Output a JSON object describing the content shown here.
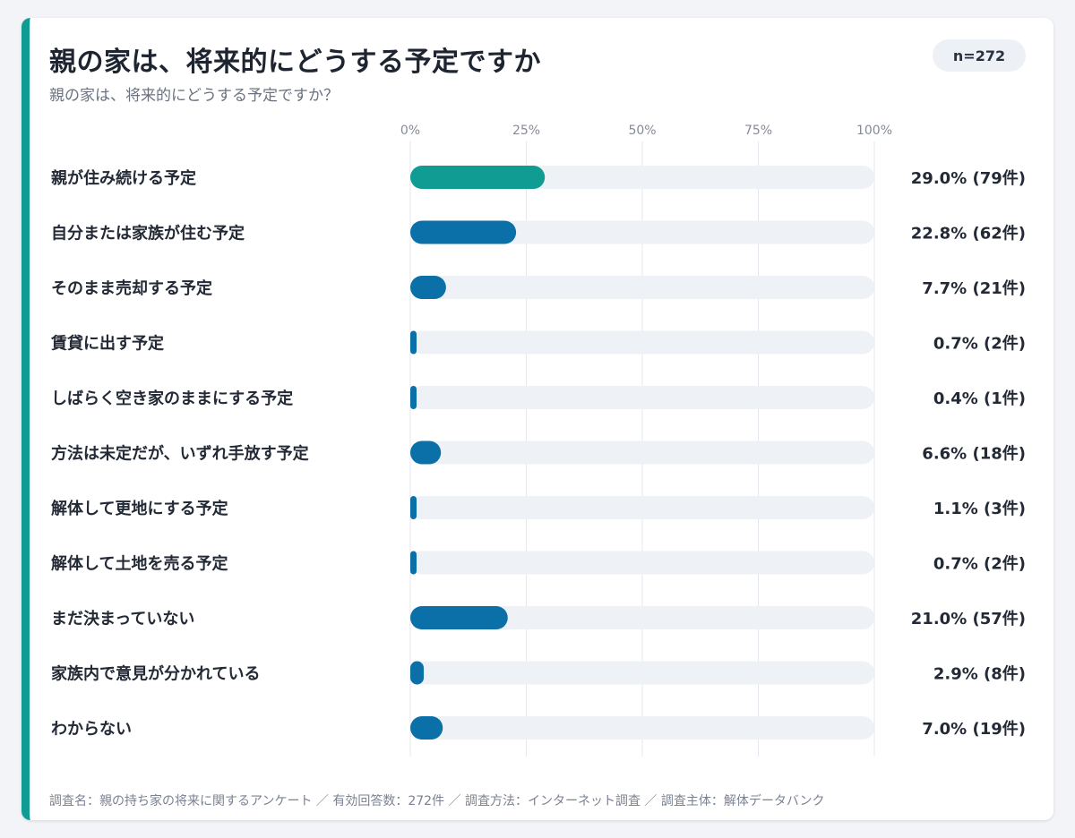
{
  "header": {
    "title": "親の家は、将来的にどうする予定ですか",
    "subtitle": "親の家は、将来的にどうする予定ですか？",
    "sample_badge": "n=272"
  },
  "footer": {
    "note": "調査名：親の持ち家の将来に関するアンケート ／ 有効回答数：272件 ／ 調査方法：インターネット調査 ／ 調査主体：解体データバンク"
  },
  "colors": {
    "accent": "#109c93",
    "bar_highlight": "#109c93",
    "bar_default": "#0b6fa8",
    "track": "#eef1f6"
  },
  "chart_data": {
    "type": "bar",
    "orientation": "horizontal",
    "categories": [
      "親が住み続ける予定",
      "自分または家族が住む予定",
      "そのまま売却する予定",
      "賃貸に出す予定",
      "しばらく空き家のままにする予定",
      "方法は未定だが、いずれ手放す予定",
      "解体して更地にする予定",
      "解体して土地を売る予定",
      "まだ決まっていない",
      "家族内で意見が分かれている",
      "わからない"
    ],
    "values": [
      29.0,
      22.8,
      7.7,
      0.7,
      0.4,
      6.6,
      1.1,
      0.7,
      21.0,
      2.9,
      7.0
    ],
    "counts": [
      79,
      62,
      21,
      2,
      1,
      18,
      3,
      2,
      57,
      8,
      19
    ],
    "value_labels": [
      "29.0% (79件)",
      "22.8% (62件)",
      "7.7% (21件)",
      "0.7% (2件)",
      "0.4% (1件)",
      "6.6% (18件)",
      "1.1% (3件)",
      "0.7% (2件)",
      "21.0% (57件)",
      "2.9% (8件)",
      "7.0% (19件)"
    ],
    "xlim": [
      0,
      100
    ],
    "xticks": [
      0,
      25,
      50,
      75,
      100
    ],
    "xtick_labels": [
      "0%",
      "25%",
      "50%",
      "75%",
      "100%"
    ],
    "grid": true,
    "legend": "none"
  }
}
